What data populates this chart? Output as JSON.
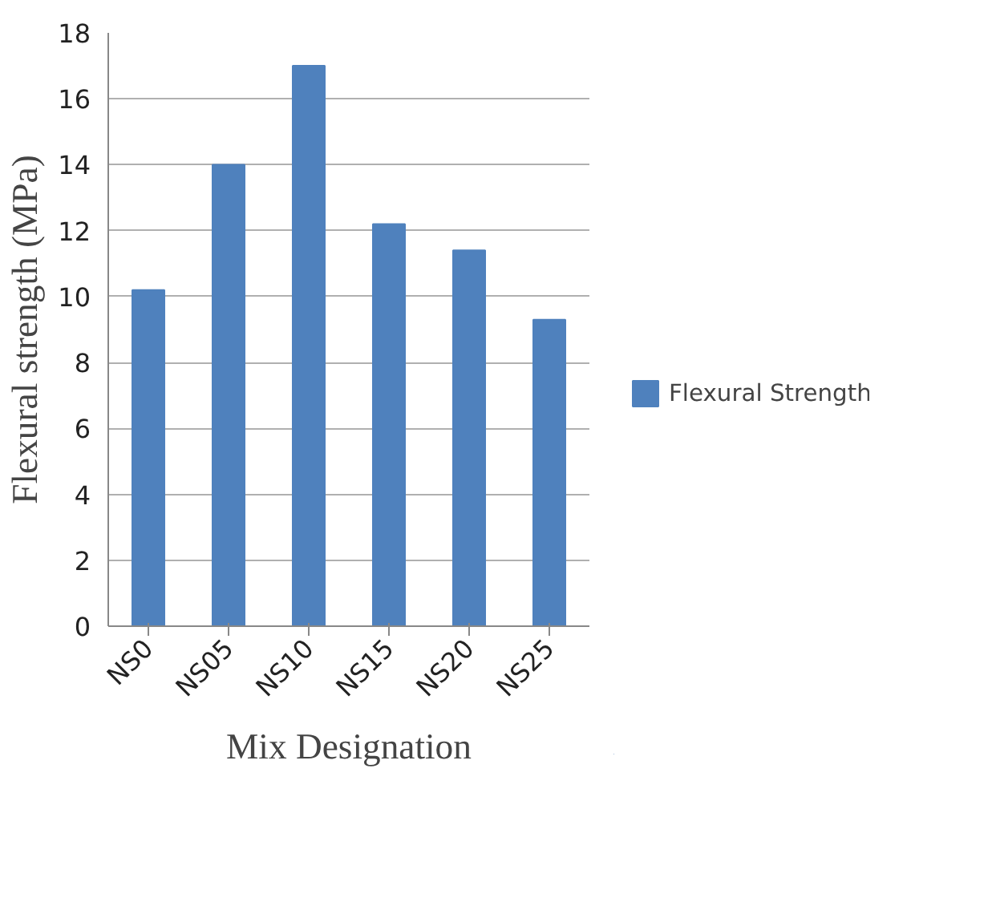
{
  "chart_data": {
    "type": "bar",
    "xlabel": "Mix Designation",
    "ylabel": "Flexural strength (MPa)",
    "categories": [
      "NS0",
      "NS05",
      "NS10",
      "NS15",
      "NS20",
      "NS25"
    ],
    "series": [
      {
        "name": "Flexural Strength",
        "color": "#4f81bd",
        "values": [
          10.2,
          14.0,
          17.0,
          12.2,
          11.4,
          9.3
        ]
      }
    ],
    "ylim": [
      0,
      18
    ],
    "yticks": [
      0,
      2,
      4,
      6,
      8,
      10,
      12,
      14,
      16,
      18
    ],
    "grid": "y",
    "legend": "right"
  }
}
